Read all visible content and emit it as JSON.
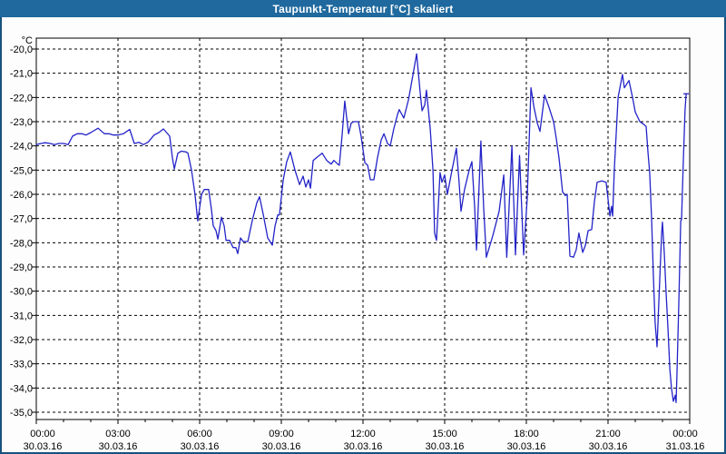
{
  "window": {
    "title": "Taupunkt-Temperatur [°C] skaliert"
  },
  "chart_data": {
    "type": "line",
    "title": "Taupunkt-Temperatur [°C] skaliert",
    "ylabel": "°C",
    "ylim": [
      -35,
      -20
    ],
    "grid": true,
    "legend": false,
    "x_axis_span_hours": 24,
    "major_tick_hours": 3,
    "minor_tick_hours": 1,
    "y_ticks": [
      "-20,0",
      "-21,0",
      "-22,0",
      "-23,0",
      "-24,0",
      "-25,0",
      "-26,0",
      "-27,0",
      "-28,0",
      "-29,0",
      "-30,0",
      "-31,0",
      "-32,0",
      "-33,0",
      "-34,0",
      "-35,0"
    ],
    "x_ticks": [
      {
        "hour": 0,
        "time": "00:00",
        "date": "30.03.16"
      },
      {
        "hour": 3,
        "time": "03:00",
        "date": "30.03.16"
      },
      {
        "hour": 6,
        "time": "06:00",
        "date": "30.03.16"
      },
      {
        "hour": 9,
        "time": "09:00",
        "date": "30.03.16"
      },
      {
        "hour": 12,
        "time": "12:00",
        "date": "30.03.16"
      },
      {
        "hour": 15,
        "time": "15:00",
        "date": "30.03.16"
      },
      {
        "hour": 18,
        "time": "18:00",
        "date": "30.03.16"
      },
      {
        "hour": 21,
        "time": "21:00",
        "date": "30.03.16"
      },
      {
        "hour": 24,
        "time": "00:00",
        "date": "31.03.16"
      }
    ],
    "colors": {
      "titlebar": "#1f699e",
      "title_text": "#ffffff",
      "window_bg": "#fcfdfc",
      "window_border": "#17527e",
      "plot_bg": "#ffffff",
      "grid": "#000000",
      "frame": "#000000",
      "line": "#2323c8"
    },
    "series": [
      {
        "name": "Taupunkt-Temperatur",
        "unit": "°C",
        "points": [
          [
            0,
            -23.95
          ],
          [
            0.17,
            -23.9
          ],
          [
            0.33,
            -23.87
          ],
          [
            0.5,
            -23.9
          ],
          [
            0.67,
            -23.95
          ],
          [
            0.83,
            -23.9
          ],
          [
            1,
            -23.9
          ],
          [
            1.17,
            -23.95
          ],
          [
            1.33,
            -23.6
          ],
          [
            1.5,
            -23.5
          ],
          [
            1.67,
            -23.5
          ],
          [
            1.83,
            -23.55
          ],
          [
            2,
            -23.45
          ],
          [
            2.27,
            -23.27
          ],
          [
            2.5,
            -23.5
          ],
          [
            2.67,
            -23.5
          ],
          [
            2.83,
            -23.55
          ],
          [
            3,
            -23.55
          ],
          [
            3.2,
            -23.5
          ],
          [
            3.43,
            -23.32
          ],
          [
            3.6,
            -23.9
          ],
          [
            3.77,
            -23.85
          ],
          [
            3.93,
            -23.95
          ],
          [
            4.1,
            -23.85
          ],
          [
            4.33,
            -23.55
          ],
          [
            4.5,
            -23.45
          ],
          [
            4.67,
            -23.3
          ],
          [
            4.9,
            -23.6
          ],
          [
            5,
            -24.5
          ],
          [
            5.07,
            -24.95
          ],
          [
            5.2,
            -24.3
          ],
          [
            5.33,
            -24.22
          ],
          [
            5.5,
            -24.25
          ],
          [
            5.57,
            -24.3
          ],
          [
            5.7,
            -25
          ],
          [
            5.83,
            -26
          ],
          [
            5.93,
            -27.1
          ],
          [
            6.07,
            -26
          ],
          [
            6.17,
            -25.8
          ],
          [
            6.33,
            -25.8
          ],
          [
            6.43,
            -26.6
          ],
          [
            6.5,
            -27.3
          ],
          [
            6.6,
            -27.5
          ],
          [
            6.67,
            -27.85
          ],
          [
            6.8,
            -26.95
          ],
          [
            6.9,
            -27.3
          ],
          [
            6.97,
            -27.9
          ],
          [
            7.1,
            -27.9
          ],
          [
            7.23,
            -28.2
          ],
          [
            7.33,
            -28.2
          ],
          [
            7.4,
            -28.45
          ],
          [
            7.5,
            -27.8
          ],
          [
            7.6,
            -27.95
          ],
          [
            7.77,
            -27.95
          ],
          [
            7.93,
            -27.1
          ],
          [
            8.1,
            -26.35
          ],
          [
            8.2,
            -26.1
          ],
          [
            8.33,
            -26.8
          ],
          [
            8.5,
            -27.8
          ],
          [
            8.67,
            -28.1
          ],
          [
            8.77,
            -27.3
          ],
          [
            8.87,
            -26.85
          ],
          [
            8.93,
            -26.85
          ],
          [
            9.07,
            -25.4
          ],
          [
            9.2,
            -24.65
          ],
          [
            9.33,
            -24.25
          ],
          [
            9.5,
            -25
          ],
          [
            9.67,
            -25.6
          ],
          [
            9.8,
            -25.25
          ],
          [
            9.9,
            -25.7
          ],
          [
            10,
            -25.4
          ],
          [
            10.07,
            -25.75
          ],
          [
            10.17,
            -24.6
          ],
          [
            10.33,
            -24.45
          ],
          [
            10.5,
            -24.3
          ],
          [
            10.67,
            -24.6
          ],
          [
            10.83,
            -24.75
          ],
          [
            10.93,
            -24.6
          ],
          [
            11.07,
            -24.75
          ],
          [
            11.13,
            -24.8
          ],
          [
            11.23,
            -23.6
          ],
          [
            11.33,
            -22.15
          ],
          [
            11.47,
            -23.5
          ],
          [
            11.57,
            -23.05
          ],
          [
            11.67,
            -23
          ],
          [
            11.83,
            -23
          ],
          [
            11.93,
            -23.6
          ],
          [
            12.07,
            -24.7
          ],
          [
            12.17,
            -24.8
          ],
          [
            12.27,
            -25.4
          ],
          [
            12.4,
            -25.4
          ],
          [
            12.53,
            -24.5
          ],
          [
            12.67,
            -23.75
          ],
          [
            12.77,
            -23.5
          ],
          [
            12.9,
            -23.9
          ],
          [
            13,
            -24
          ],
          [
            13.13,
            -23.3
          ],
          [
            13.27,
            -22.7
          ],
          [
            13.33,
            -22.5
          ],
          [
            13.5,
            -22.85
          ],
          [
            13.67,
            -22.1
          ],
          [
            13.83,
            -21.1
          ],
          [
            13.97,
            -20.2
          ],
          [
            14.1,
            -21.8
          ],
          [
            14.17,
            -22.55
          ],
          [
            14.27,
            -22.3
          ],
          [
            14.33,
            -21.7
          ],
          [
            14.47,
            -23.3
          ],
          [
            14.57,
            -25
          ],
          [
            14.63,
            -27.6
          ],
          [
            14.7,
            -27.9
          ],
          [
            14.83,
            -25.1
          ],
          [
            14.9,
            -25.5
          ],
          [
            15,
            -25.2
          ],
          [
            15.1,
            -26
          ],
          [
            15.27,
            -25
          ],
          [
            15.43,
            -24.1
          ],
          [
            15.53,
            -25.5
          ],
          [
            15.6,
            -26.7
          ],
          [
            15.73,
            -25.8
          ],
          [
            15.9,
            -25
          ],
          [
            16,
            -24.65
          ],
          [
            16.1,
            -26.5
          ],
          [
            16.17,
            -28.3
          ],
          [
            16.27,
            -25.5
          ],
          [
            16.33,
            -23.8
          ],
          [
            16.43,
            -26.5
          ],
          [
            16.53,
            -28.6
          ],
          [
            16.77,
            -27.7
          ],
          [
            17,
            -26.7
          ],
          [
            17.17,
            -25.2
          ],
          [
            17.28,
            -28.6
          ],
          [
            17.47,
            -24
          ],
          [
            17.6,
            -28.5
          ],
          [
            17.75,
            -24.4
          ],
          [
            17.9,
            -28.5
          ],
          [
            18.03,
            -26.2
          ],
          [
            18.17,
            -21.6
          ],
          [
            18.28,
            -22.4
          ],
          [
            18.4,
            -23.05
          ],
          [
            18.5,
            -23.4
          ],
          [
            18.67,
            -21.9
          ],
          [
            18.83,
            -22.4
          ],
          [
            19,
            -23
          ],
          [
            19.1,
            -23.7
          ],
          [
            19.2,
            -24.5
          ],
          [
            19.33,
            -25.9
          ],
          [
            19.43,
            -26.05
          ],
          [
            19.5,
            -26
          ],
          [
            19.6,
            -28.55
          ],
          [
            19.73,
            -28.6
          ],
          [
            19.83,
            -28.3
          ],
          [
            19.93,
            -27.6
          ],
          [
            20.07,
            -28.4
          ],
          [
            20.17,
            -28.1
          ],
          [
            20.27,
            -27.5
          ],
          [
            20.4,
            -27.45
          ],
          [
            20.5,
            -26.3
          ],
          [
            20.6,
            -25.5
          ],
          [
            20.77,
            -25.45
          ],
          [
            20.93,
            -25.5
          ],
          [
            21.07,
            -26.9
          ],
          [
            21.13,
            -26.5
          ],
          [
            21.17,
            -26.9
          ],
          [
            21.23,
            -25
          ],
          [
            21.37,
            -22
          ],
          [
            21.53,
            -21.05
          ],
          [
            21.6,
            -21.6
          ],
          [
            21.77,
            -21.3
          ],
          [
            21.9,
            -22
          ],
          [
            22,
            -22.6
          ],
          [
            22.17,
            -23
          ],
          [
            22.3,
            -23.1
          ],
          [
            22.4,
            -23.2
          ],
          [
            22.47,
            -24.3
          ],
          [
            22.53,
            -25.1
          ],
          [
            22.6,
            -27
          ],
          [
            22.67,
            -29.5
          ],
          [
            22.73,
            -31.3
          ],
          [
            22.8,
            -32.3
          ],
          [
            22.9,
            -29.5
          ],
          [
            22.97,
            -27.6
          ],
          [
            23,
            -27.15
          ],
          [
            23.07,
            -28.5
          ],
          [
            23.13,
            -30
          ],
          [
            23.2,
            -31.5
          ],
          [
            23.27,
            -33.2
          ],
          [
            23.33,
            -34
          ],
          [
            23.4,
            -34.55
          ],
          [
            23.47,
            -34.3
          ],
          [
            23.5,
            -34.6
          ],
          [
            23.53,
            -33.5
          ],
          [
            23.6,
            -30.5
          ],
          [
            23.67,
            -27.1
          ],
          [
            23.7,
            -27.05
          ],
          [
            23.77,
            -24.5
          ],
          [
            23.83,
            -22.5
          ],
          [
            23.87,
            -21.85
          ]
        ]
      }
    ]
  }
}
